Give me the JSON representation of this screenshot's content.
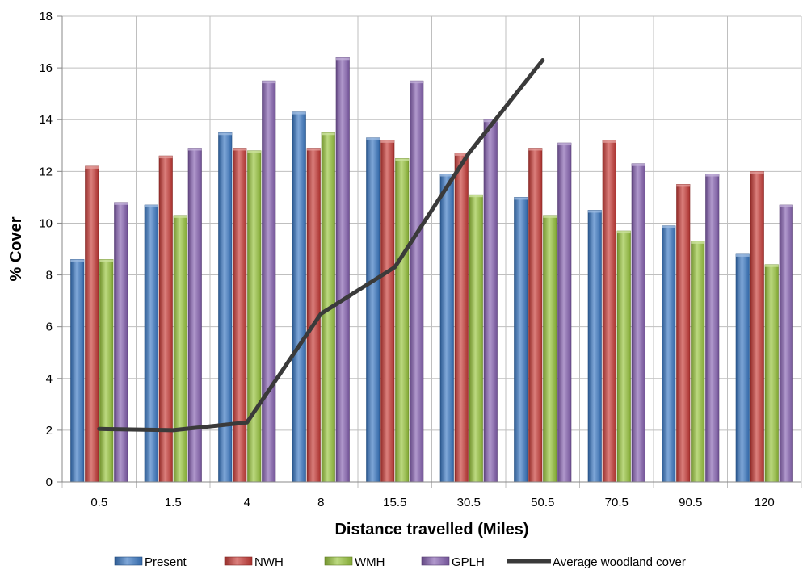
{
  "chart_data": {
    "type": "bar",
    "title": "",
    "xlabel": "Distance travelled (Miles)",
    "ylabel": "% Cover",
    "ylim": [
      0,
      18
    ],
    "yticks": [
      0,
      2,
      4,
      6,
      8,
      10,
      12,
      14,
      16,
      18
    ],
    "grid": "horizontal",
    "legend": "bottom",
    "categories": [
      "0.5",
      "1.5",
      "4",
      "8",
      "15.5",
      "30.5",
      "50.5",
      "70.5",
      "90.5",
      "120"
    ],
    "series": [
      {
        "name": "Present",
        "type": "bar",
        "color": "#3A78C3",
        "values": [
          8.6,
          10.7,
          13.5,
          14.3,
          13.3,
          11.9,
          11.0,
          10.5,
          9.9,
          8.8
        ]
      },
      {
        "name": "NWH",
        "type": "bar",
        "color": "#C73A36",
        "values": [
          12.2,
          12.6,
          12.9,
          12.9,
          13.2,
          12.7,
          12.9,
          13.2,
          11.5,
          12.0
        ]
      },
      {
        "name": "WMH",
        "type": "bar",
        "color": "#98C43C",
        "values": [
          8.6,
          10.3,
          12.8,
          13.5,
          12.5,
          11.1,
          10.3,
          9.7,
          9.3,
          8.4
        ]
      },
      {
        "name": "GPLH",
        "type": "bar",
        "color": "#8560B0",
        "values": [
          10.8,
          12.9,
          15.5,
          16.4,
          15.5,
          14.0,
          13.1,
          12.3,
          11.9,
          10.7
        ]
      },
      {
        "name": "Average woodland cover",
        "type": "line",
        "color": "#3A3A3A",
        "values": [
          2.05,
          2.0,
          2.3,
          6.5,
          8.3,
          12.7,
          16.3,
          null,
          null,
          null
        ]
      }
    ]
  }
}
